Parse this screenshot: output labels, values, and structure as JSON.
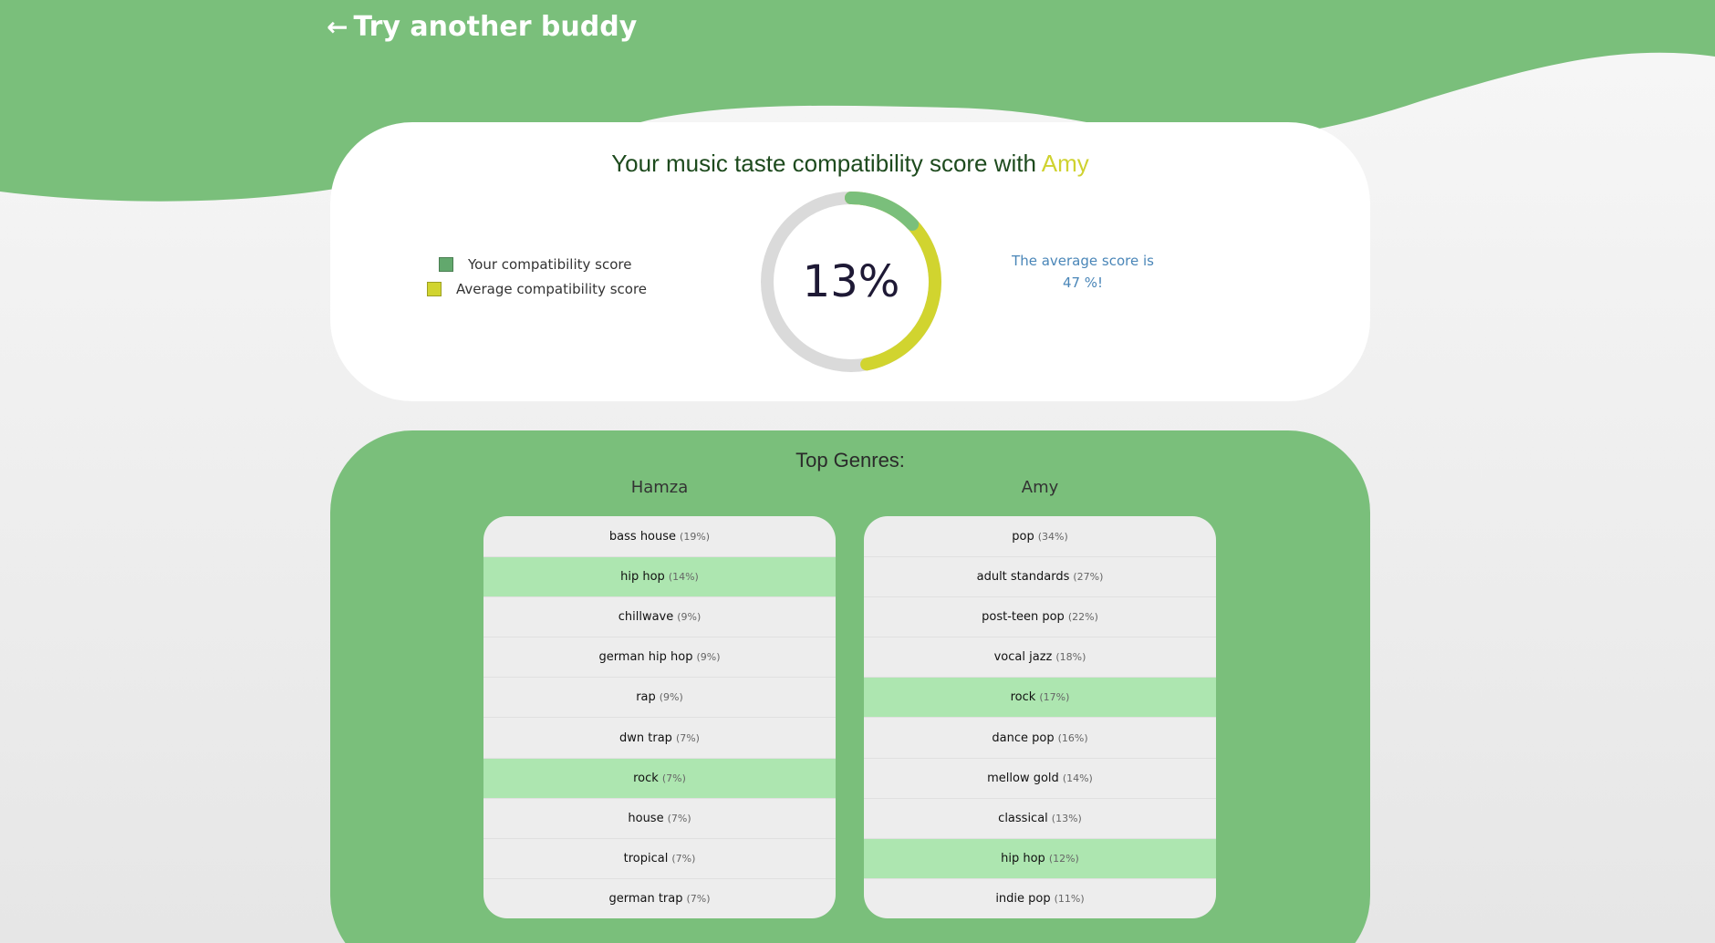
{
  "header": {
    "back_label": "Try another buddy"
  },
  "score_card": {
    "title_prefix": "Your music taste compatibility score with",
    "buddy_name": "Amy",
    "score_text": "13%",
    "score_value": 13,
    "average_value": 47,
    "average_line1": "The average score is",
    "average_line2": "47 %!",
    "legend": [
      {
        "label": "Your compatibility score",
        "color": "#62a86d"
      },
      {
        "label": "Average compatibility score",
        "color": "#d1d42f"
      }
    ]
  },
  "genres": {
    "title": "Top Genres:",
    "left_user": "Hamza",
    "right_user": "Amy",
    "left": [
      {
        "name": "bass house",
        "pct": "(19%)",
        "shared": false
      },
      {
        "name": "hip hop",
        "pct": "(14%)",
        "shared": true
      },
      {
        "name": "chillwave",
        "pct": "(9%)",
        "shared": false
      },
      {
        "name": "german hip hop",
        "pct": "(9%)",
        "shared": false
      },
      {
        "name": "rap",
        "pct": "(9%)",
        "shared": false
      },
      {
        "name": "dwn trap",
        "pct": "(7%)",
        "shared": false
      },
      {
        "name": "rock",
        "pct": "(7%)",
        "shared": true
      },
      {
        "name": "house",
        "pct": "(7%)",
        "shared": false
      },
      {
        "name": "tropical",
        "pct": "(7%)",
        "shared": false
      },
      {
        "name": "german trap",
        "pct": "(7%)",
        "shared": false
      }
    ],
    "right": [
      {
        "name": "pop",
        "pct": "(34%)",
        "shared": false
      },
      {
        "name": "adult standards",
        "pct": "(27%)",
        "shared": false
      },
      {
        "name": "post-teen pop",
        "pct": "(22%)",
        "shared": false
      },
      {
        "name": "vocal jazz",
        "pct": "(18%)",
        "shared": false
      },
      {
        "name": "rock",
        "pct": "(17%)",
        "shared": true
      },
      {
        "name": "dance pop",
        "pct": "(16%)",
        "shared": false
      },
      {
        "name": "mellow gold",
        "pct": "(14%)",
        "shared": false
      },
      {
        "name": "classical",
        "pct": "(13%)",
        "shared": false
      },
      {
        "name": "hip hop",
        "pct": "(12%)",
        "shared": true
      },
      {
        "name": "indie pop",
        "pct": "(11%)",
        "shared": false
      }
    ]
  },
  "colors": {
    "brand_green": "#7abf7b",
    "shared_highlight": "#ade6b0",
    "accent_yellow": "#d1d42f",
    "track_gray": "#dadada"
  }
}
